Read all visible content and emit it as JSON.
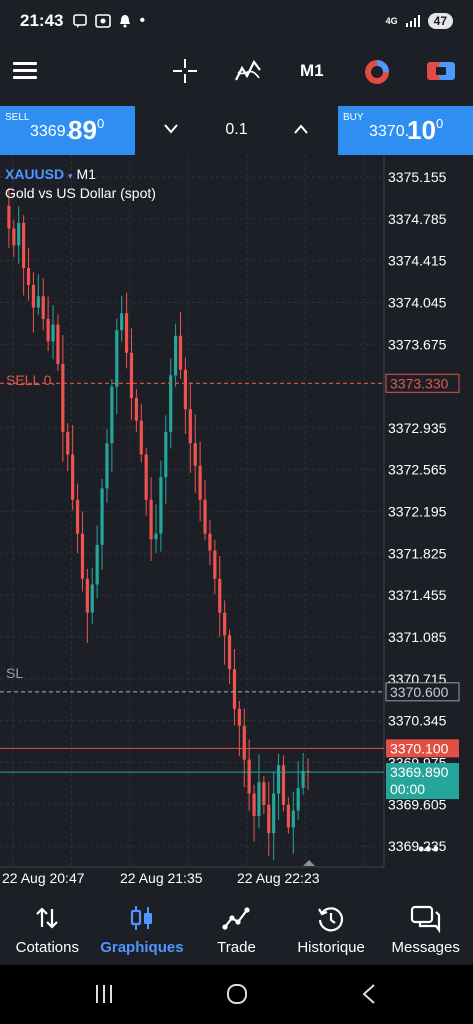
{
  "status": {
    "time": "21:43",
    "network": "4G",
    "battery": "47"
  },
  "toolbar": {
    "timeframe": "M1"
  },
  "trade": {
    "sell_label": "SELL",
    "sell_price_small": "3369.",
    "sell_price_big": "89",
    "sell_price_sup": "0",
    "buy_label": "BUY",
    "buy_price_small": "3370.",
    "buy_price_big": "10",
    "buy_price_sup": "0",
    "lot": "0.1"
  },
  "chart": {
    "symbol": "XAUUSD",
    "symbol_tf": "M1",
    "description": "Gold vs US Dollar (spot)",
    "sell_order_label": "SELL 0.",
    "sl_label": "SL",
    "price_ticks": [
      "3375.155",
      "3374.785",
      "3374.415",
      "3374.045",
      "3373.675",
      "3372.935",
      "3372.565",
      "3372.195",
      "3371.825",
      "3371.455",
      "3371.085",
      "3370.715",
      "3370.345",
      "3369.975",
      "3369.605",
      "3369.235"
    ],
    "time_ticks": [
      "22 Aug 20:47",
      "22 Aug 21:35",
      "22 Aug 22:23"
    ],
    "sell_order_price": "3373.330",
    "sl_price": "3370.600",
    "ask_price": "3370.100",
    "bid_price": "3369.890",
    "bid_timer": "00:00",
    "colors": {
      "bull": "#26a69a",
      "bear": "#ef5350",
      "sell_line": "#e0574b",
      "ask_tag": "#e25045",
      "bid_tag": "#26a69a",
      "sl_line": "#9aa0a8",
      "grid": "#2c313a"
    }
  },
  "chart_data": {
    "type": "candlestick",
    "symbol": "XAUUSD",
    "timeframe": "M1",
    "ylim": [
      3369.05,
      3375.35
    ],
    "x_tick_labels": [
      "22 Aug 20:47",
      "22 Aug 21:35",
      "22 Aug 22:23"
    ],
    "close_path": [
      3374.9,
      3374.7,
      3374.55,
      3374.75,
      3374.35,
      3374.2,
      3374.0,
      3374.1,
      3373.9,
      3373.7,
      3373.85,
      3373.5,
      3372.9,
      3372.7,
      3372.3,
      3372.0,
      3371.6,
      3371.3,
      3371.55,
      3371.9,
      3372.4,
      3372.8,
      3373.3,
      3373.8,
      3373.95,
      3373.6,
      3373.2,
      3373.0,
      3372.7,
      3372.3,
      3371.95,
      3372.0,
      3372.5,
      3372.9,
      3373.4,
      3373.75,
      3373.45,
      3373.1,
      3372.8,
      3372.6,
      3372.3,
      3372.0,
      3371.85,
      3371.6,
      3371.3,
      3371.1,
      3370.8,
      3370.45,
      3370.3,
      3370.0,
      3369.7,
      3369.5,
      3369.8,
      3369.6,
      3369.35,
      3369.7,
      3369.95,
      3369.6,
      3369.4,
      3369.55,
      3369.75,
      3369.9,
      3369.89
    ]
  },
  "nav": {
    "items": [
      {
        "label": "Cotations"
      },
      {
        "label": "Graphiques"
      },
      {
        "label": "Trade"
      },
      {
        "label": "Historique"
      },
      {
        "label": "Messages"
      }
    ]
  }
}
